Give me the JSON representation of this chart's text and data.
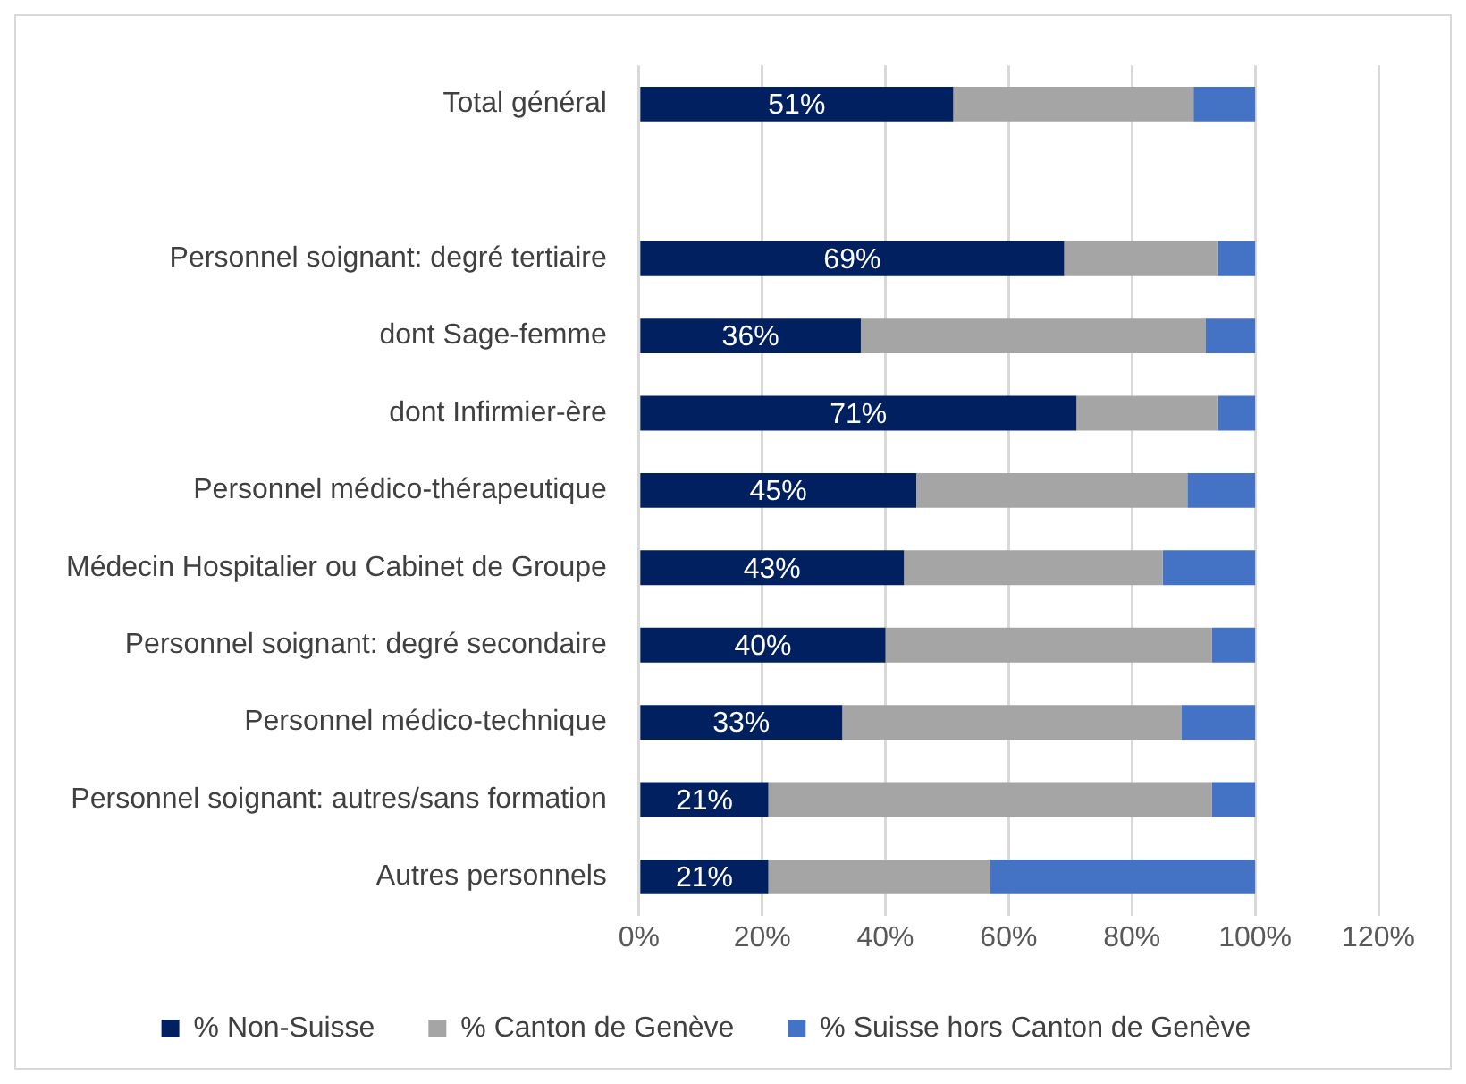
{
  "chart_data": {
    "type": "bar",
    "orientation": "horizontal",
    "stacked": true,
    "categories": [
      "Total général",
      null,
      "Personnel soignant: degré tertiaire",
      "dont Sage-femme",
      "dont Infirmier-ère",
      "Personnel médico-thérapeutique",
      "Médecin Hospitalier ou Cabinet de Groupe",
      "Personnel soignant: degré secondaire",
      "Personnel médico-technique",
      "Personnel soignant: autres/sans formation",
      "Autres personnels"
    ],
    "series": [
      {
        "name": "% Non-Suisse",
        "color": "#002060",
        "values": [
          51,
          null,
          69,
          36,
          71,
          45,
          43,
          40,
          33,
          21,
          21
        ],
        "value_labels": [
          "51%",
          null,
          "69%",
          "36%",
          "71%",
          "45%",
          "43%",
          "40%",
          "33%",
          "21%",
          "21%"
        ]
      },
      {
        "name": "% Canton de Genève",
        "color": "#a5a5a5",
        "values": [
          39,
          null,
          25,
          56,
          23,
          44,
          42,
          53,
          55,
          72,
          36
        ]
      },
      {
        "name": "% Suisse hors Canton de Genève",
        "color": "#4472c4",
        "values": [
          10,
          null,
          6,
          8,
          6,
          11,
          15,
          7,
          12,
          7,
          43
        ]
      }
    ],
    "xlim": [
      0,
      120
    ],
    "xticks": [
      {
        "value": 0,
        "label": "0%"
      },
      {
        "value": 20,
        "label": "20%"
      },
      {
        "value": 40,
        "label": "40%"
      },
      {
        "value": 60,
        "label": "60%"
      },
      {
        "value": 80,
        "label": "80%"
      },
      {
        "value": 100,
        "label": "100%"
      },
      {
        "value": 120,
        "label": "120%"
      }
    ],
    "grid": "x",
    "legend": "bottom"
  }
}
